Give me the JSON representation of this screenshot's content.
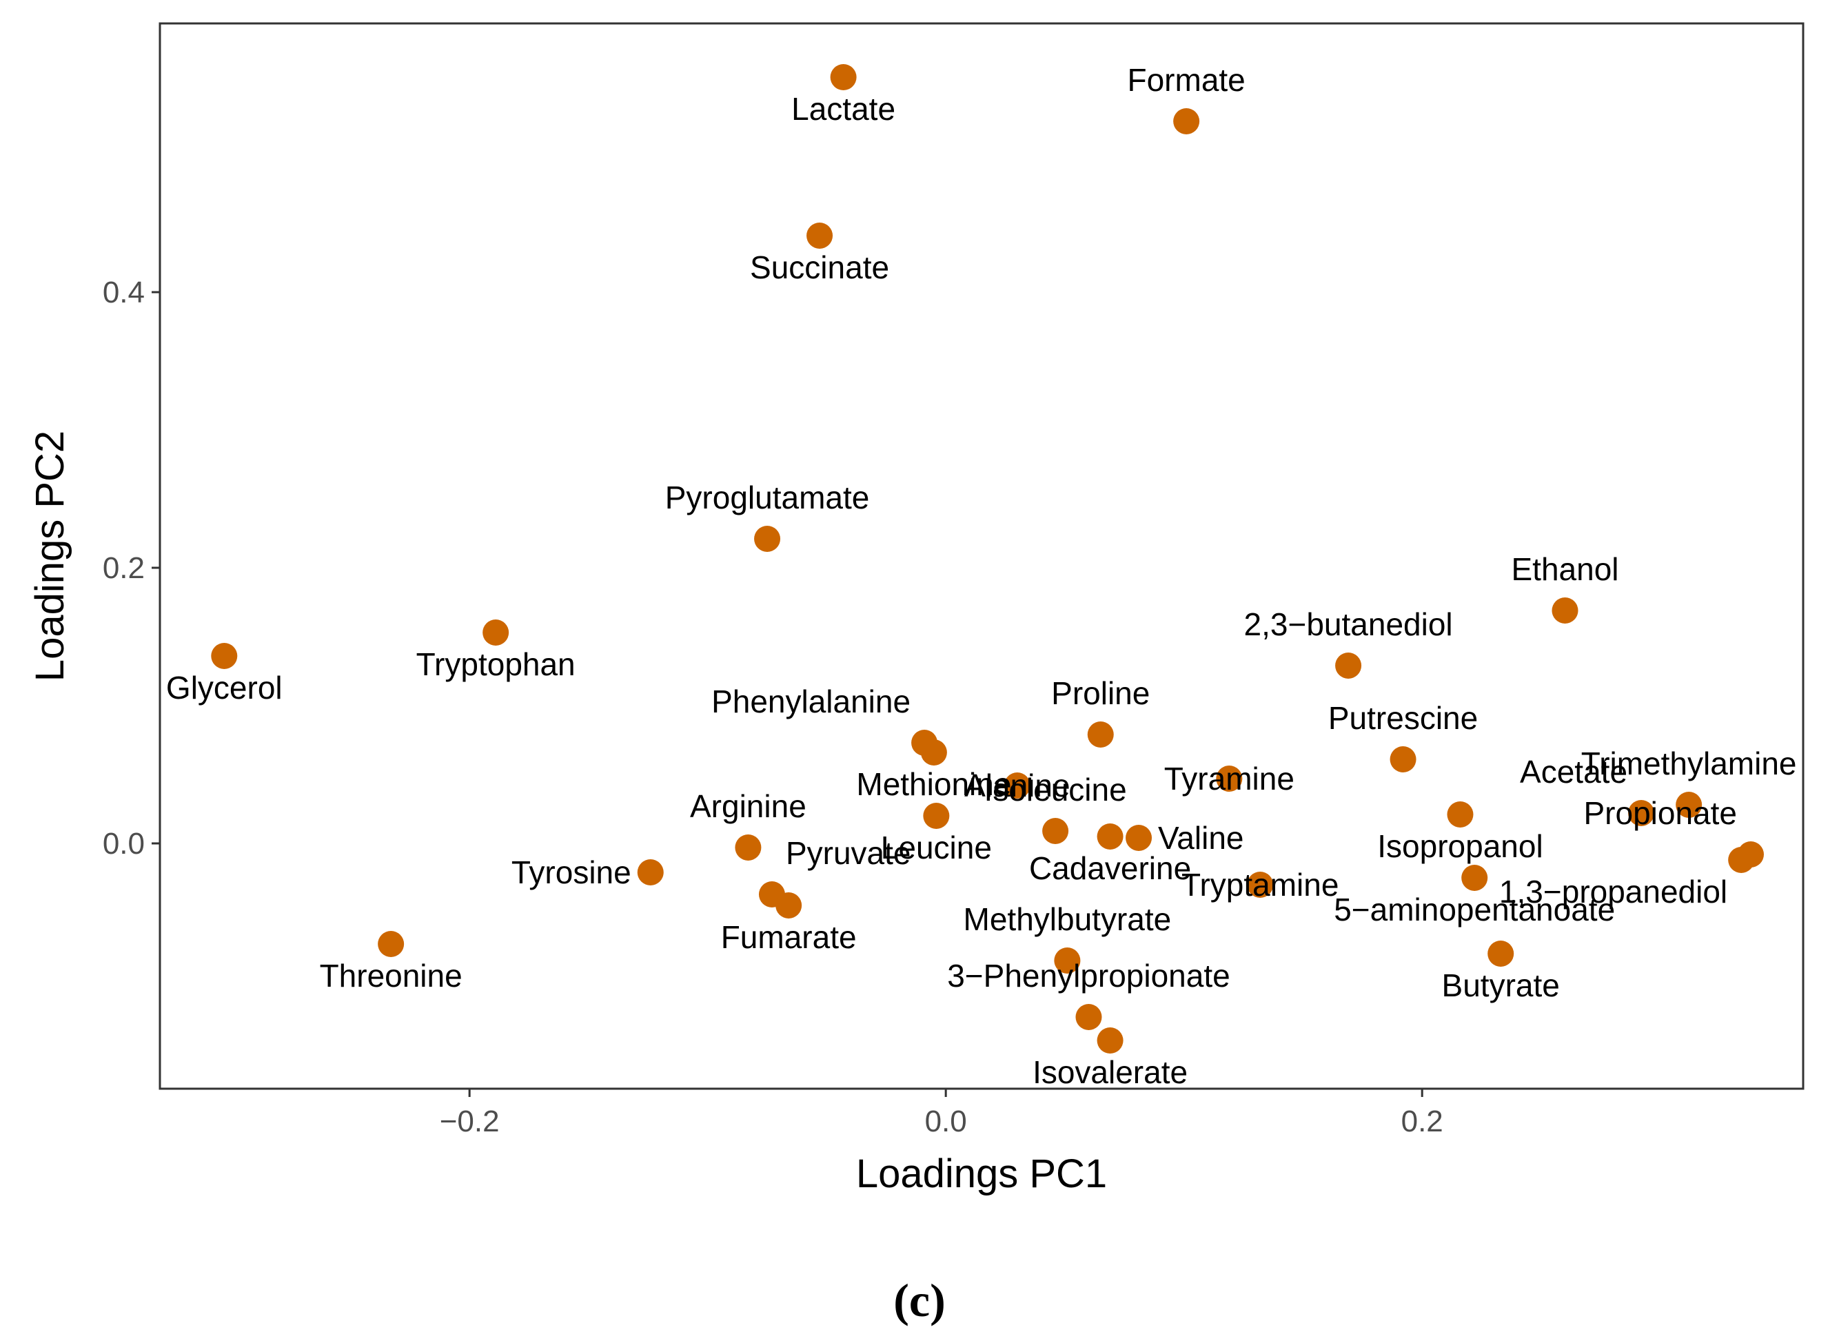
{
  "chart_data": {
    "type": "scatter",
    "xlabel": "Loadings PC1",
    "ylabel": "Loadings PC2",
    "xlim": [
      -0.33,
      0.36
    ],
    "ylim": [
      -0.178,
      0.595
    ],
    "x_ticks": [
      -0.2,
      0.0,
      0.2
    ],
    "x_tick_labels": [
      "−0.2",
      "0.0",
      "0.2"
    ],
    "y_ticks": [
      0.0,
      0.2,
      0.4
    ],
    "y_tick_labels": [
      "0.0",
      "0.2",
      "0.4"
    ],
    "grid": false,
    "point_color": "#cc6600",
    "caption": "(c)",
    "points": [
      {
        "label": "Lactate",
        "x": -0.043,
        "y": 0.556,
        "label_pos": "below"
      },
      {
        "label": "Formate",
        "x": 0.101,
        "y": 0.524,
        "label_pos": "above"
      },
      {
        "label": "Succinate",
        "x": -0.053,
        "y": 0.441,
        "label_pos": "below"
      },
      {
        "label": "Pyroglutamate",
        "x": -0.075,
        "y": 0.221,
        "label_pos": "above"
      },
      {
        "label": "Glycerol",
        "x": -0.303,
        "y": 0.136,
        "label_pos": "below"
      },
      {
        "label": "Tryptophan",
        "x": -0.189,
        "y": 0.153,
        "label_pos": "below"
      },
      {
        "label": "Ethanol",
        "x": 0.26,
        "y": 0.169,
        "label_pos": "above"
      },
      {
        "label": "2,3−butanediol",
        "x": 0.169,
        "y": 0.129,
        "label_pos": "above"
      },
      {
        "label": "Phenylalanine",
        "x": -0.009,
        "y": 0.073,
        "label_pos": "above-left"
      },
      {
        "label": "Methionine",
        "x": -0.005,
        "y": 0.066,
        "label_pos": "below"
      },
      {
        "label": "Proline",
        "x": 0.065,
        "y": 0.079,
        "label_pos": "above"
      },
      {
        "label": "Putrescine",
        "x": 0.192,
        "y": 0.061,
        "label_pos": "above"
      },
      {
        "label": "Tyramine",
        "x": 0.119,
        "y": 0.047,
        "label_pos": "center"
      },
      {
        "label": "Alanine",
        "x": 0.03,
        "y": 0.042,
        "label_pos": "center"
      },
      {
        "label": "Trimethylamine",
        "x": 0.312,
        "y": 0.028,
        "label_pos": "above"
      },
      {
        "label": "Acetate",
        "x": 0.292,
        "y": 0.022,
        "label_pos": "above-left"
      },
      {
        "label": "Isopropanol",
        "x": 0.216,
        "y": 0.021,
        "label_pos": "below"
      },
      {
        "label": "Leucine",
        "x": -0.004,
        "y": 0.02,
        "label_pos": "below"
      },
      {
        "label": "Isoleucine",
        "x": 0.046,
        "y": 0.009,
        "label_pos": "above"
      },
      {
        "label": "Cadaverine",
        "x": 0.069,
        "y": 0.005,
        "label_pos": "below"
      },
      {
        "label": "Valine",
        "x": 0.081,
        "y": 0.004,
        "label_pos": "right"
      },
      {
        "label": "Propionate",
        "x": 0.338,
        "y": -0.008,
        "label_pos": "above-left"
      },
      {
        "label": "1,3−propanediol",
        "x": 0.334,
        "y": -0.012,
        "label_pos": "below-left"
      },
      {
        "label": "Arginine",
        "x": -0.083,
        "y": -0.003,
        "label_pos": "above"
      },
      {
        "label": "Tyrosine",
        "x": -0.124,
        "y": -0.021,
        "label_pos": "left"
      },
      {
        "label": "Pyruvate",
        "x": -0.073,
        "y": -0.037,
        "label_pos": "above-right"
      },
      {
        "label": "Fumarate",
        "x": -0.066,
        "y": -0.045,
        "label_pos": "below"
      },
      {
        "label": "Tryptamine",
        "x": 0.132,
        "y": -0.03,
        "label_pos": "center"
      },
      {
        "label": "5−aminopentanoate",
        "x": 0.222,
        "y": -0.025,
        "label_pos": "below"
      },
      {
        "label": "Butyrate",
        "x": 0.233,
        "y": -0.08,
        "label_pos": "below"
      },
      {
        "label": "Threonine",
        "x": -0.233,
        "y": -0.073,
        "label_pos": "below"
      },
      {
        "label": "Methylbutyrate",
        "x": 0.051,
        "y": -0.085,
        "label_pos": "above"
      },
      {
        "label": "3−Phenylpropionate",
        "x": 0.06,
        "y": -0.126,
        "label_pos": "above"
      },
      {
        "label": "Isovalerate",
        "x": 0.069,
        "y": -0.143,
        "label_pos": "below"
      }
    ]
  }
}
